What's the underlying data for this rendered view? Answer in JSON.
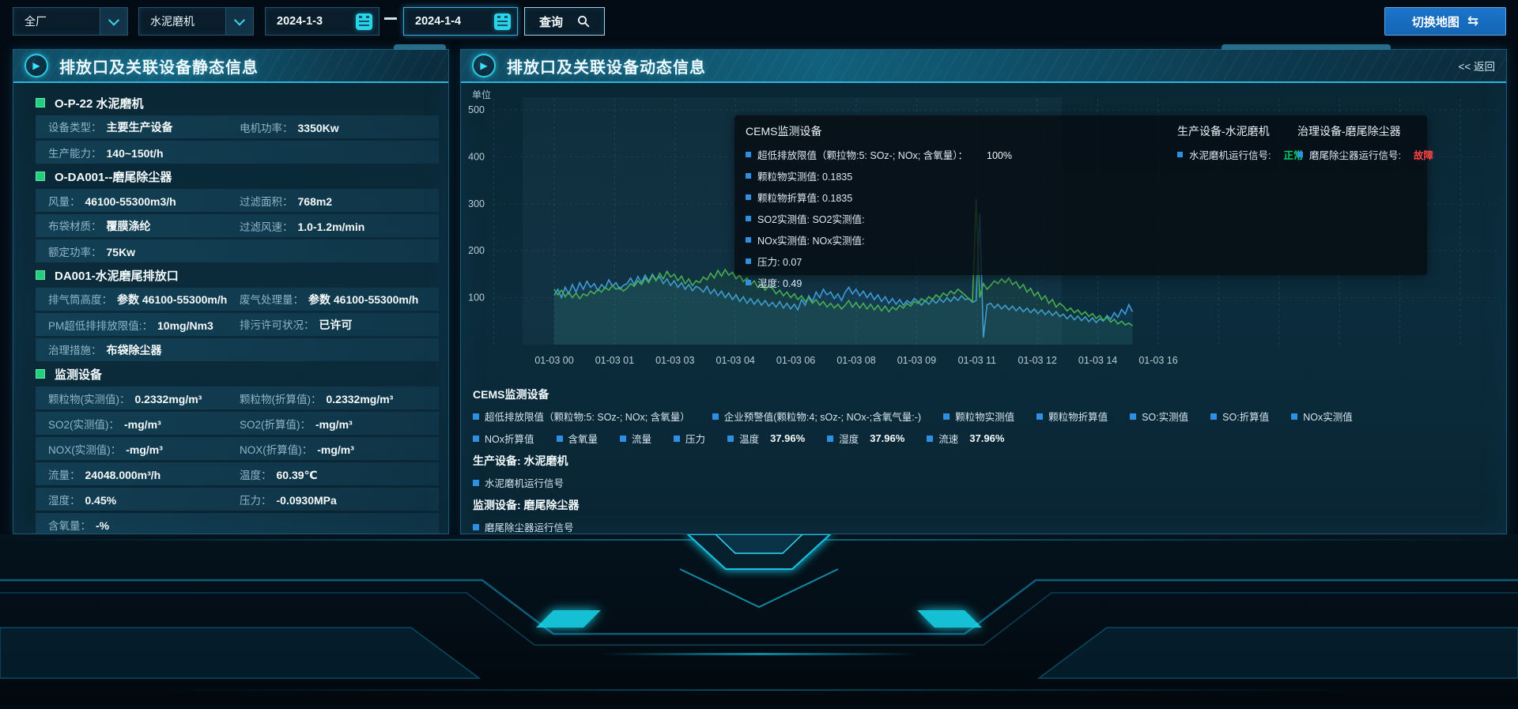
{
  "topbar": {
    "plant_select": {
      "value": "全厂"
    },
    "device_select": {
      "value": "水泥磨机"
    },
    "date_start": "2024-1-3",
    "date_separator": "—",
    "date_end": "2024-1-4",
    "query_label": "查询",
    "switch_map_label": "切换地图",
    "switch_map_icon": "⇆"
  },
  "left_panel": {
    "title": "排放口及关联设备静态信息",
    "sections": [
      {
        "heading": "O-P-22 水泥磨机",
        "rows": [
          [
            {
              "label": "设备类型",
              "value": "主要生产设备"
            },
            {
              "label": "电机功率",
              "value": "3350Kw"
            }
          ],
          [
            {
              "label": "生产能力",
              "value": "140~150t/h"
            }
          ]
        ]
      },
      {
        "heading": "O-DA001--磨尾除尘器",
        "rows": [
          [
            {
              "label": "风量",
              "value": "46100-55300m3/h"
            },
            {
              "label": "过滤面积",
              "value": "768m2"
            }
          ],
          [
            {
              "label": "布袋材质",
              "value": "覆膜涤纶"
            },
            {
              "label": "过滤风速",
              "value": "1.0-1.2m/min"
            }
          ],
          [
            {
              "label": "额定功率",
              "value": "75Kw"
            }
          ]
        ]
      },
      {
        "heading": "DA001-水泥磨尾排放口",
        "rows": [
          [
            {
              "label": "排气筒高度",
              "value": "参数 46100-55300m/h"
            },
            {
              "label": "废气处理量",
              "value": "参数 46100-55300m/h"
            }
          ],
          [
            {
              "label": "PM超低排排放限值:",
              "value": "10mg/Nm3"
            },
            {
              "label": "排污许可状况",
              "value": "已许可"
            }
          ],
          [
            {
              "label": "治理措施",
              "value": "布袋除尘器"
            }
          ]
        ]
      },
      {
        "heading": "监测设备",
        "rows": [
          [
            {
              "label": "颗粒物(实测值)",
              "value": "0.2332mg/m³"
            },
            {
              "label": "颗粒物(折算值)",
              "value": "0.2332mg/m³"
            }
          ],
          [
            {
              "label": "SO2(实测值)",
              "value": "-mg/m³"
            },
            {
              "label": "SO2(折算值)",
              "value": "-mg/m³"
            }
          ],
          [
            {
              "label": "NOX(实测值)",
              "value": "-mg/m³"
            },
            {
              "label": "NOX(折算值)",
              "value": "-mg/m³"
            }
          ],
          [
            {
              "label": "流量",
              "value": "24048.000m³/h"
            },
            {
              "label": "温度",
              "value": "60.39℃"
            }
          ],
          [
            {
              "label": "湿度",
              "value": "0.45%"
            },
            {
              "label": "压力",
              "value": "-0.0930MPa"
            }
          ],
          [
            {
              "label": "含氧量",
              "value": "-%"
            }
          ]
        ]
      }
    ]
  },
  "right_panel": {
    "title": "排放口及关联设备动态信息",
    "back_label": "<< 返回",
    "tooltip": {
      "col1_title": "CEMS监测设备",
      "col1_items": [
        {
          "label": "超低排放限值（颗拉物:5: SOz-; NOx; 含氧量）：",
          "value": "100%"
        },
        {
          "label": "颗粒物实测值: 0.1835",
          "value": ""
        },
        {
          "label": "颗粒物折算值: 0.1835",
          "value": ""
        },
        {
          "label": "SO2实测值: SO2实测值:",
          "value": ""
        },
        {
          "label": "NOx实测值: NOx实测值:",
          "value": ""
        },
        {
          "label": "压力: 0.07",
          "value": ""
        },
        {
          "label": "湿度: 0.49",
          "value": ""
        }
      ],
      "col2_title": "生产设备-水泥磨机",
      "col2_item": {
        "label": "水泥磨机运行信号:",
        "value": "正常",
        "status_color": "#00d26a"
      },
      "col3_title": "治理设备-磨尾除尘器",
      "col3_item": {
        "label": "磨尾除尘器运行信号:",
        "value": "故障",
        "status_color": "#ff4545"
      }
    },
    "legend": {
      "cems_title": "CEMS监测设备",
      "row1": [
        {
          "label": "超低排放限值（颗粒物:5: SOz-; NOx; 含氧量）"
        },
        {
          "label": "企业预警值(颗粒物:4; sOz-; NOx-;含氧气量:-)"
        },
        {
          "label": "颗粒物实测值"
        },
        {
          "label": "颗粒物折算值"
        },
        {
          "label": "SO:实测值"
        },
        {
          "label": "SO:折算值"
        },
        {
          "label": "NOx实测值"
        }
      ],
      "row2": [
        {
          "label": "NOx折算值"
        },
        {
          "label": "含氧量"
        },
        {
          "label": "流量"
        },
        {
          "label": "压力"
        },
        {
          "label": "温度",
          "value": "37.96%"
        },
        {
          "label": "湿度",
          "value": "37.96%"
        },
        {
          "label": "流速",
          "value": "37.96%"
        }
      ],
      "production_title": "生产设备: 水泥磨机",
      "production_item": "水泥磨机运行信号",
      "monitor_title": "监测设备: 磨尾除尘器",
      "monitor_item": "磨尾除尘器运行信号"
    }
  },
  "chart_data": {
    "type": "line",
    "unit_label": "单位",
    "ylim": [
      0,
      500
    ],
    "yticks": [
      100,
      200,
      300,
      400,
      500
    ],
    "grid": "dashed",
    "legend_position": "bottom",
    "categories": [
      "01-03 00",
      "01-03 01",
      "01-03 03",
      "01-03 04",
      "01-03 06",
      "01-03 08",
      "01-03 09",
      "01-03 11",
      "01-03 12",
      "01-03 14",
      "01-03 16"
    ],
    "series": [
      {
        "name": "series-blue",
        "color": "#3f9bd8",
        "values": [
          105,
          118,
          100,
          122,
          108,
          128,
          112,
          132,
          118,
          135,
          122,
          130,
          115,
          128,
          120,
          138,
          125,
          132,
          118,
          126,
          130,
          142,
          128,
          145,
          132,
          148,
          135,
          150,
          138,
          145,
          130,
          140,
          126,
          136,
          122,
          132,
          118,
          128,
          115,
          124,
          120,
          112,
          124,
          108,
          118,
          104,
          114,
          100,
          110,
          96,
          106,
          92,
          102,
          88,
          98,
          86,
          96,
          84,
          94,
          82,
          90,
          80,
          92,
          78,
          88,
          76,
          86,
          74,
          96,
          84,
          104,
          92,
          112,
          100,
          118,
          106,
          112,
          98,
          108,
          94,
          112,
          122,
          108,
          118,
          104,
          114,
          100,
          110,
          96,
          106,
          92,
          102,
          88,
          98,
          86,
          96,
          84,
          94,
          88,
          98,
          92,
          84,
          94,
          86,
          96,
          88,
          98,
          90,
          100,
          92,
          102,
          94,
          104,
          96,
          98,
          90,
          94,
          280,
          15,
          85,
          88,
          78,
          86,
          76,
          84,
          74,
          82,
          72,
          80,
          70,
          78,
          68,
          76,
          66,
          74,
          64,
          72,
          62,
          70,
          60,
          65,
          55,
          63,
          53,
          61,
          51,
          59,
          49,
          57,
          47,
          55,
          50,
          62,
          54,
          68,
          58,
          75,
          65,
          85,
          70
        ]
      },
      {
        "name": "series-green",
        "color": "#49ad52",
        "values": [
          118,
          106,
          116,
          102,
          112,
          100,
          110,
          98,
          108,
          104,
          114,
          108,
          118,
          112,
          122,
          116,
          126,
          118,
          122,
          114,
          120,
          130,
          124,
          136,
          128,
          142,
          132,
          148,
          136,
          152,
          140,
          156,
          144,
          150,
          136,
          146,
          130,
          140,
          126,
          136,
          132,
          144,
          138,
          152,
          142,
          158,
          146,
          160,
          148,
          154,
          140,
          148,
          134,
          142,
          128,
          136,
          122,
          130,
          116,
          126,
          120,
          108,
          116,
          104,
          112,
          100,
          108,
          96,
          104,
          92,
          100,
          88,
          96,
          84,
          92,
          80,
          88,
          78,
          86,
          76,
          84,
          94,
          80,
          90,
          78,
          88,
          76,
          86,
          74,
          84,
          72,
          82,
          70,
          80,
          74,
          84,
          78,
          88,
          82,
          92,
          88,
          98,
          92,
          102,
          96,
          106,
          100,
          110,
          104,
          114,
          108,
          118,
          112,
          105,
          98,
          92,
          310,
          100,
          130,
          118,
          126,
          136,
          130,
          140,
          132,
          142,
          128,
          134,
          120,
          128,
          112,
          120,
          104,
          112,
          96,
          104,
          88,
          96,
          80,
          88,
          82,
          72,
          78,
          68,
          74,
          64,
          70,
          60,
          66,
          56,
          62,
          52,
          58,
          48,
          54,
          44,
          50,
          42,
          46,
          40
        ]
      }
    ]
  }
}
